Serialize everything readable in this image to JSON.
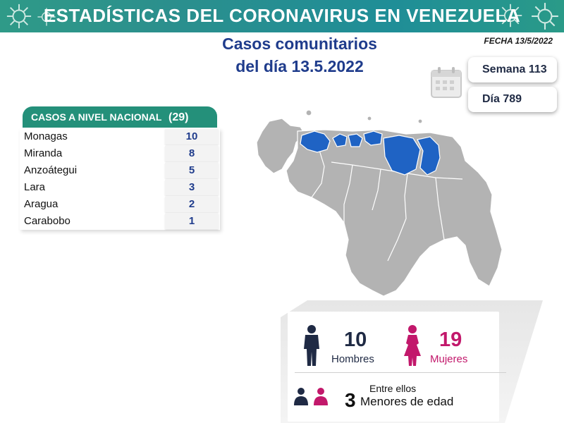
{
  "banner": {
    "title": "ESTADÍSTICAS DEL CORONAVIRUS EN VENEZUELA"
  },
  "subtitle": {
    "line1": "Casos comunitarios",
    "line2": "del día 13.5.2022"
  },
  "fecha": "FECHA 13/5/2022",
  "semana": "Semana 113",
  "dia": "Día 789",
  "nacional": {
    "label": "CASOS A NIVEL NACIONAL",
    "total": "(29)",
    "rows": [
      {
        "state": "Monagas",
        "value": "10"
      },
      {
        "state": "Miranda",
        "value": "8"
      },
      {
        "state": "Anzoátegui",
        "value": "5"
      },
      {
        "state": "Lara",
        "value": "3"
      },
      {
        "state": "Aragua",
        "value": "2"
      },
      {
        "state": "Carabobo",
        "value": "1"
      }
    ]
  },
  "stats": {
    "hombres": {
      "value": "10",
      "label": "Hombres"
    },
    "mujeres": {
      "value": "19",
      "label": "Mujeres"
    },
    "menores": {
      "intro": "Entre ellos",
      "value": "3",
      "label": "Menores de edad"
    }
  },
  "colors": {
    "banner": "#2b8f8d",
    "title_blue": "#1f3c8c",
    "table_header": "#24907a",
    "map_highlight": "#1f63c4",
    "map_base": "#b3b3b3",
    "female": "#c2186b",
    "male": "#1f2a44"
  },
  "icons": [
    "virus-icon",
    "calendar-icon",
    "male-figure-icon",
    "female-figure-icon",
    "children-icon"
  ]
}
